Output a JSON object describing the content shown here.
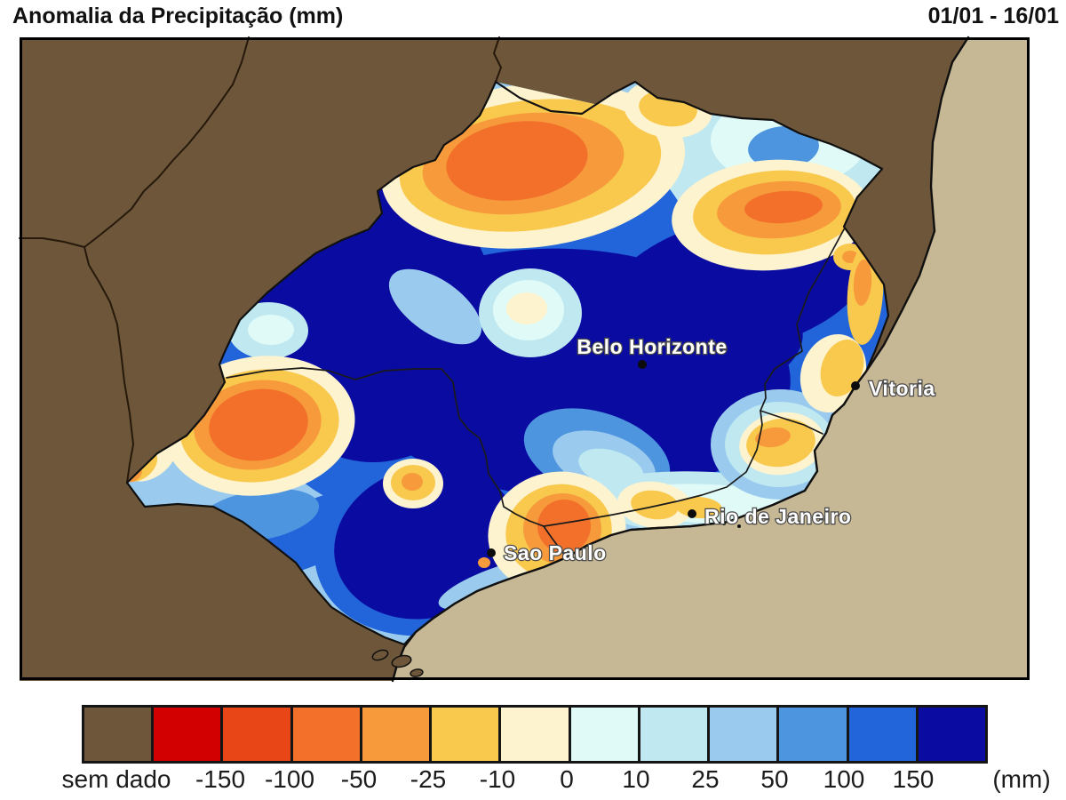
{
  "header": {
    "title": "Anomalia da Precipitação (mm)",
    "date_range": "01/01 - 16/01"
  },
  "map": {
    "cities": [
      {
        "name": "Belo Horizonte"
      },
      {
        "name": "Vitoria"
      },
      {
        "name": "Rio de Janeiro"
      },
      {
        "name": "Sao Paulo"
      }
    ],
    "colors": {
      "no_data_land": "#6d5639",
      "ocean": "#c6b795"
    }
  },
  "colorbar": {
    "labels": [
      "sem dado",
      "-150",
      "-100",
      "-50",
      "-25",
      "-10",
      "0",
      "10",
      "25",
      "50",
      "100",
      "150"
    ],
    "unit": "(mm)",
    "colors": [
      "#6d5639",
      "#d20000",
      "#e94617",
      "#f2702a",
      "#f69a3c",
      "#f9c94e",
      "#fdf3ce",
      "#e0fbf7",
      "#bfe8f1",
      "#9acbee",
      "#4e95e0",
      "#2264d9",
      "#0a0ba0"
    ]
  }
}
